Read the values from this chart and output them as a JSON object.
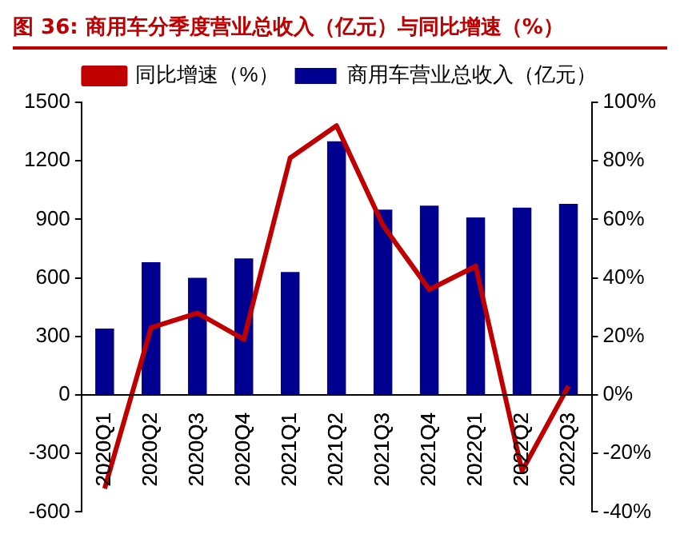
{
  "chart_data": {
    "type": "bar",
    "title": "图 36: 商用车分季度营业总收入（亿元）与同比增速（%）",
    "categories": [
      "2020Q1",
      "2020Q2",
      "2020Q3",
      "2020Q4",
      "2021Q1",
      "2021Q2",
      "2021Q3",
      "2021Q4",
      "2022Q1",
      "2022Q2",
      "2022Q3"
    ],
    "series": [
      {
        "name": "商用车营业总收入（亿元）",
        "color": "#000090",
        "values": [
          340,
          680,
          600,
          700,
          630,
          1300,
          950,
          970,
          910,
          960,
          980
        ]
      },
      {
        "name": "同比增速（%）",
        "type": "line",
        "axis": "y2",
        "color": "#c00000",
        "values": [
          -32,
          23,
          28,
          19,
          81,
          92,
          58,
          36,
          44,
          -26,
          3
        ]
      }
    ],
    "ylim": [
      -600,
      1500
    ],
    "yticks": [
      -600,
      -300,
      0,
      300,
      600,
      900,
      1200,
      1500
    ],
    "y2lim": [
      -40,
      100
    ],
    "y2ticks": [
      {
        "value": -40,
        "label": "-40%"
      },
      {
        "value": -20,
        "label": "-20%"
      },
      {
        "value": 0,
        "label": "0%"
      },
      {
        "value": 20,
        "label": "20%"
      },
      {
        "value": 40,
        "label": "40%"
      },
      {
        "value": 60,
        "label": "60%"
      },
      {
        "value": 80,
        "label": "80%"
      },
      {
        "value": 100,
        "label": "100%"
      }
    ],
    "grid": false,
    "legend": "top",
    "marker": "none"
  }
}
